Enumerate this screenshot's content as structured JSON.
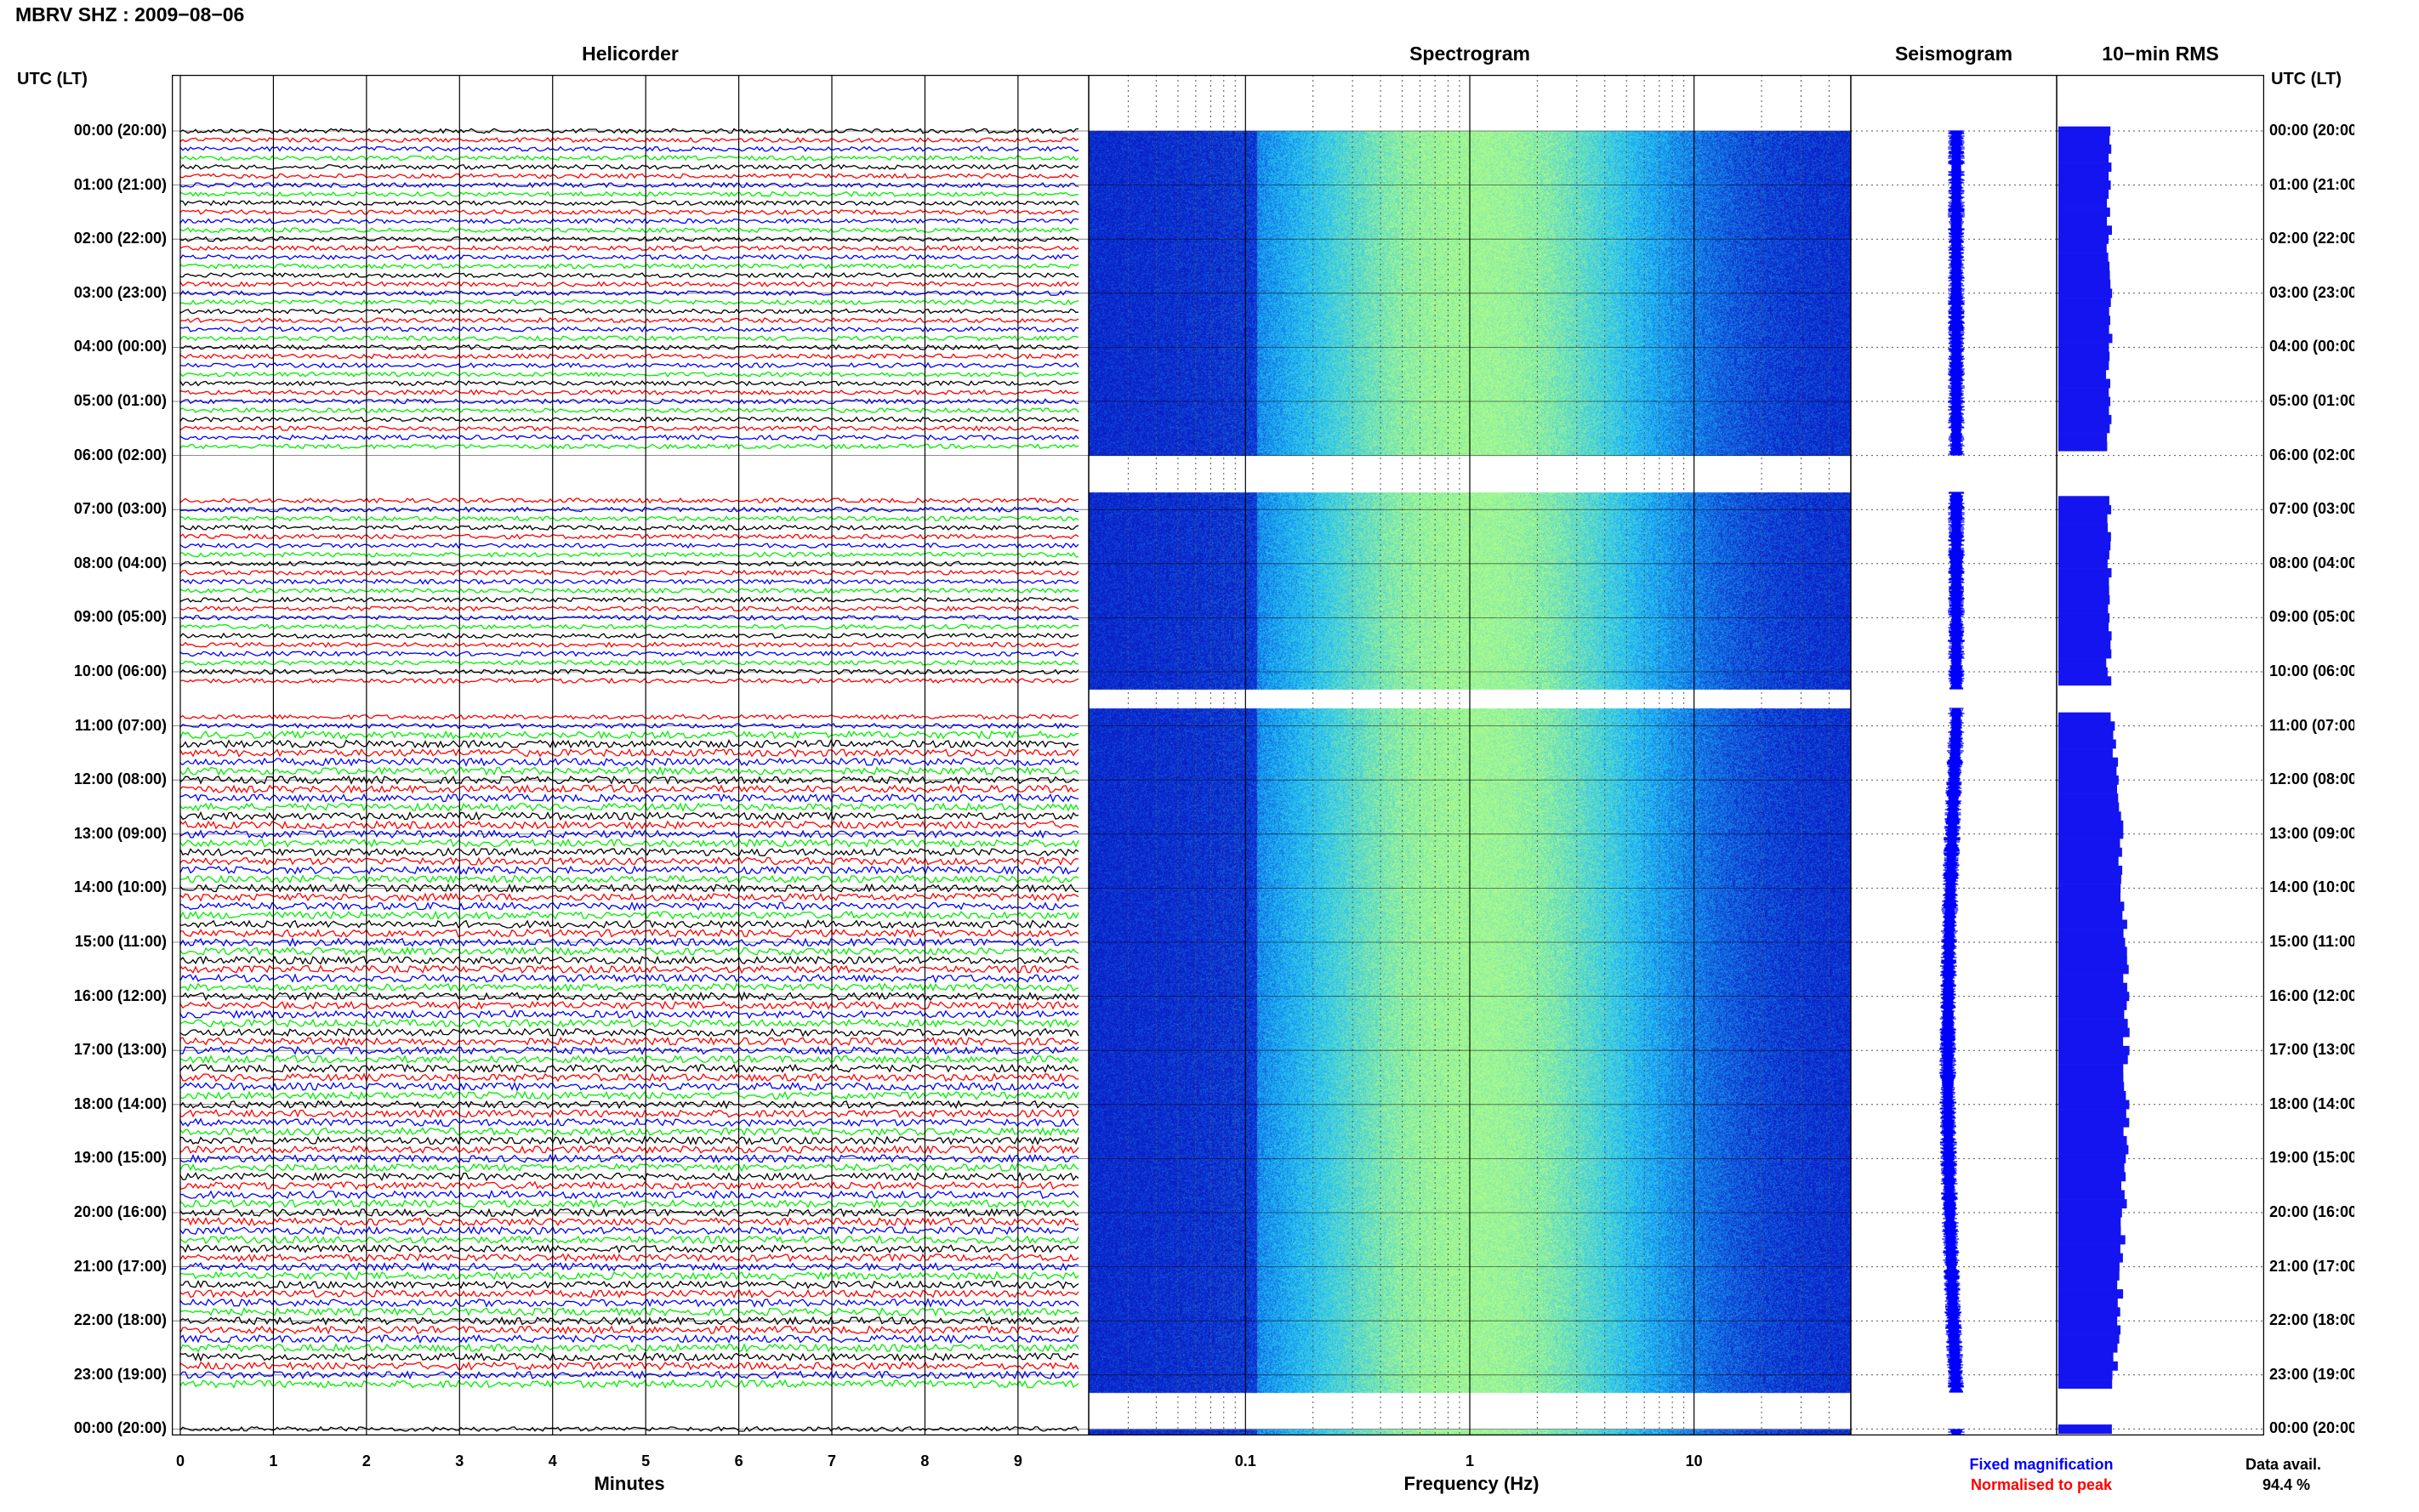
{
  "header": {
    "station_title": "MBRV SHZ : 2009−08−06",
    "axis_label_left": "UTC (LT)",
    "axis_label_right": "UTC (LT)"
  },
  "panels": {
    "helicorder_title": "Helicorder",
    "spectrogram_title": "Spectrogram",
    "seismogram_title": "Seismogram",
    "rms_title": "10−min RMS"
  },
  "hour_labels": [
    "00:00 (20:00)",
    "01:00 (21:00)",
    "02:00 (22:00)",
    "03:00 (23:00)",
    "04:00 (00:00)",
    "05:00 (01:00)",
    "06:00 (02:00)",
    "07:00 (03:00)",
    "08:00 (04:00)",
    "09:00 (05:00)",
    "10:00 (06:00)",
    "11:00 (07:00)",
    "12:00 (08:00)",
    "13:00 (09:00)",
    "14:00 (10:00)",
    "15:00 (11:00)",
    "16:00 (12:00)",
    "17:00 (13:00)",
    "18:00 (14:00)",
    "19:00 (15:00)",
    "20:00 (16:00)",
    "21:00 (17:00)",
    "22:00 (18:00)",
    "23:00 (19:00)",
    "00:00 (20:00)"
  ],
  "footer": {
    "legend_fixed": "Fixed magnification",
    "legend_normalised": "Normalised to peak",
    "data_avail_label": "Data avail.",
    "data_avail_value": "94.4 %"
  },
  "colors": {
    "trace_cycle": [
      "#000000",
      "#ff0000",
      "#0000ff",
      "#00ee00"
    ],
    "spectrogram_base": "#0a1ec8",
    "spectrogram_peak": "#7ff0b0",
    "seismogram": "#0000ff",
    "rms_bars": "#1414f0",
    "legend_fixed": "#0000ff",
    "legend_normalised": "#ff0000"
  },
  "chart_data": [
    {
      "type": "line",
      "title": "Helicorder",
      "xlabel": "Minutes",
      "ylabel": "UTC (LT)",
      "x_ticks": [
        "0",
        "1",
        "2",
        "3",
        "4",
        "5",
        "6",
        "7",
        "8",
        "9"
      ],
      "xlim": [
        0,
        10
      ],
      "traces_per_hour": 6,
      "hours_shown": 24,
      "data_gaps_hours": [
        [
          6.0,
          6.67
        ],
        [
          10.33,
          10.67
        ],
        [
          23.33,
          24.0
        ]
      ],
      "grid": true
    },
    {
      "type": "heatmap",
      "title": "Spectrogram",
      "xlabel": "Frequency (Hz)",
      "x_scale": "log",
      "x_ticks": [
        "0.1",
        "1",
        "10"
      ],
      "xlim": [
        0.02,
        50
      ],
      "peak_frequency_hz": 1,
      "grid": true
    },
    {
      "type": "line",
      "title": "Seismogram",
      "note": "daily trace"
    },
    {
      "type": "bar",
      "title": "10−min RMS",
      "orientation": "horizontal",
      "bins_per_hour": 6
    }
  ]
}
